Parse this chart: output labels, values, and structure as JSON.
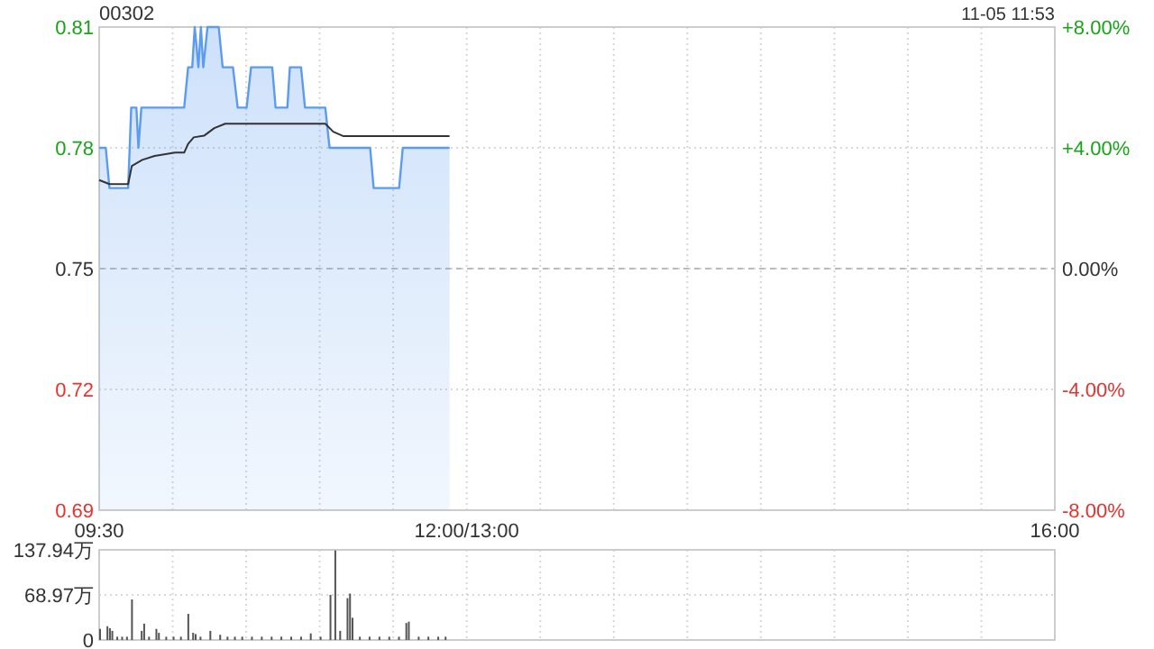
{
  "chart_data": [
    {
      "type": "line",
      "title": "00302",
      "annotations": [
        "11-05 11:53"
      ],
      "xlim": [
        9.5,
        16
      ],
      "xticks": [
        {
          "value": 9.5,
          "label": "09:30"
        },
        {
          "value": 10,
          "label": null
        },
        {
          "value": 10.5,
          "label": null
        },
        {
          "value": 11,
          "label": null
        },
        {
          "value": 11.5,
          "label": null
        },
        {
          "value": 12,
          "label": "12:00/13:00"
        },
        {
          "value": 12.5,
          "label": null
        },
        {
          "value": 13,
          "label": null
        },
        {
          "value": 13.5,
          "label": null
        },
        {
          "value": 14,
          "label": null
        },
        {
          "value": 14.5,
          "label": null
        },
        {
          "value": 15,
          "label": null
        },
        {
          "value": 15.5,
          "label": null
        },
        {
          "value": 16,
          "label": "16:00"
        }
      ],
      "ylim": [
        0.69,
        0.81
      ],
      "yticks": [
        0.69,
        0.72,
        0.75,
        0.78,
        0.81
      ],
      "y2lim": [
        -8,
        8
      ],
      "y2ticks": [
        {
          "value": -8,
          "label": "-8.00%"
        },
        {
          "value": -4,
          "label": "-4.00%"
        },
        {
          "value": 0,
          "label": "0.00%"
        },
        {
          "value": 4,
          "label": "+4.00%"
        },
        {
          "value": 8,
          "label": "+8.00%"
        }
      ],
      "grid": true,
      "ref_lines": [
        {
          "axis": "y",
          "value": 0.75,
          "color": "#bbbbbb",
          "line_style": "dashed"
        }
      ],
      "series": [
        {
          "type": "area",
          "color": "#5b9bf0",
          "x": [
            9.5,
            9.545,
            9.57,
            9.697,
            9.718,
            9.753,
            9.767,
            9.787,
            10.078,
            10.105,
            10.133,
            10.15,
            10.175,
            10.192,
            10.208,
            10.237,
            10.313,
            10.34,
            10.41,
            10.442,
            10.503,
            10.533,
            10.677,
            10.7,
            10.78,
            10.797,
            10.873,
            10.9,
            11.038,
            11.067,
            11.343,
            11.367,
            11.54,
            11.565,
            11.883
          ],
          "values": [
            0.78,
            0.78,
            0.77,
            0.77,
            0.79,
            0.79,
            0.78,
            0.79,
            0.79,
            0.8,
            0.8,
            0.81,
            0.8,
            0.81,
            0.8,
            0.81,
            0.81,
            0.8,
            0.8,
            0.79,
            0.79,
            0.8,
            0.8,
            0.79,
            0.79,
            0.8,
            0.8,
            0.79,
            0.79,
            0.78,
            0.78,
            0.77,
            0.77,
            0.78,
            0.78
          ]
        },
        {
          "type": "line",
          "color": "#333333",
          "x": [
            9.5,
            9.57,
            9.697,
            9.722,
            9.793,
            9.877,
            10.017,
            10.078,
            10.105,
            10.143,
            10.213,
            10.283,
            10.357,
            11.038,
            11.092,
            11.162,
            11.883
          ],
          "values": [
            0.772,
            0.771,
            0.771,
            0.7755,
            0.777,
            0.778,
            0.7788,
            0.7788,
            0.781,
            0.7826,
            0.783,
            0.7849,
            0.786,
            0.786,
            0.784,
            0.7829,
            0.7829
          ]
        }
      ]
    },
    {
      "type": "bar",
      "tick_labels": "y",
      "xlim": [
        9.5,
        16
      ],
      "xticks": [
        {
          "value": 9.5,
          "label": null
        },
        {
          "value": 10,
          "label": null
        },
        {
          "value": 10.5,
          "label": null
        },
        {
          "value": 11,
          "label": null
        },
        {
          "value": 11.5,
          "label": null
        },
        {
          "value": 12,
          "label": null
        },
        {
          "value": 12.5,
          "label": null
        },
        {
          "value": 13,
          "label": null
        },
        {
          "value": 13.5,
          "label": null
        },
        {
          "value": 14,
          "label": null
        },
        {
          "value": 14.5,
          "label": null
        },
        {
          "value": 15,
          "label": null
        },
        {
          "value": 15.5,
          "label": null
        },
        {
          "value": 16,
          "label": null
        }
      ],
      "ylim": [
        0,
        137.94
      ],
      "yticks": [
        {
          "value": 0,
          "label": "0"
        },
        {
          "value": 68.97,
          "label": "68.97万"
        },
        {
          "value": 137.94,
          "label": "137.94万"
        }
      ],
      "grid": true,
      "series": [
        {
          "color": "#555555",
          "x": [
            9.5,
            9.55,
            9.567,
            9.583,
            9.617,
            9.65,
            9.683,
            9.717,
            9.783,
            9.8,
            9.833,
            9.883,
            9.9,
            9.95,
            10,
            10.05,
            10.1,
            10.133,
            10.15,
            10.183,
            10.25,
            10.317,
            10.367,
            10.417,
            10.467,
            10.533,
            10.6,
            10.667,
            10.733,
            10.8,
            10.867,
            10.933,
            11,
            11.067,
            11.1,
            11.133,
            11.183,
            11.2,
            11.217,
            11.267,
            11.333,
            11.4,
            11.467,
            11.533,
            11.583,
            11.6,
            11.667,
            11.733,
            11.8,
            11.85
          ],
          "values": [
            17,
            21,
            18,
            14,
            5,
            5,
            5,
            62,
            14,
            25,
            5,
            17,
            11,
            5,
            5,
            5,
            40,
            11,
            9,
            5,
            14,
            8,
            5,
            5,
            5,
            5,
            5,
            5,
            5,
            5,
            5,
            10,
            5,
            69,
            137,
            14,
            64,
            71,
            34,
            5,
            5,
            5,
            5,
            5,
            26,
            28,
            5,
            5,
            5,
            5
          ]
        }
      ]
    }
  ]
}
